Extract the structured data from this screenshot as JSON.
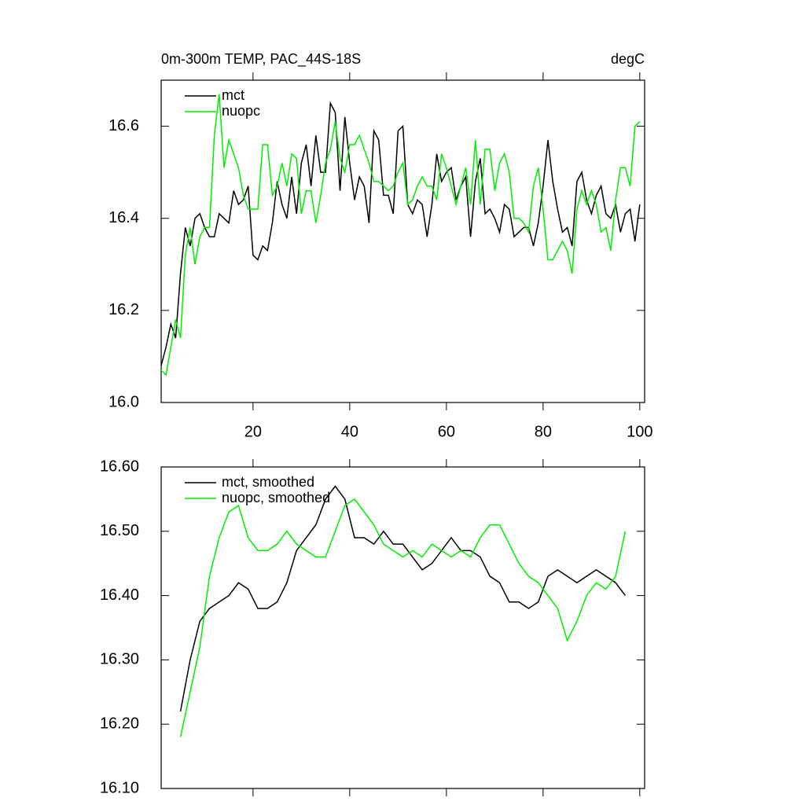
{
  "chart_data": [
    {
      "type": "line",
      "title": "0m-300m TEMP, PAC_44S-18S",
      "units": "degC",
      "legend": "top-left",
      "show_xtick_labels": true,
      "x": [
        1,
        2,
        3,
        4,
        5,
        6,
        7,
        8,
        9,
        10,
        11,
        12,
        13,
        14,
        15,
        16,
        17,
        18,
        19,
        20,
        21,
        22,
        23,
        24,
        25,
        26,
        27,
        28,
        29,
        30,
        31,
        32,
        33,
        34,
        35,
        36,
        37,
        38,
        39,
        40,
        41,
        42,
        43,
        44,
        45,
        46,
        47,
        48,
        49,
        50,
        51,
        52,
        53,
        54,
        55,
        56,
        57,
        58,
        59,
        60,
        61,
        62,
        63,
        64,
        65,
        66,
        67,
        68,
        69,
        70,
        71,
        72,
        73,
        74,
        75,
        76,
        77,
        78,
        79,
        80,
        81,
        82,
        83,
        84,
        85,
        86,
        87,
        88,
        89,
        90,
        91,
        92,
        93,
        94,
        95,
        96,
        97,
        98,
        99,
        100
      ],
      "series": [
        {
          "name": "mct",
          "color": "#000000",
          "values": [
            16.08,
            16.12,
            16.17,
            16.14,
            16.28,
            16.38,
            16.34,
            16.4,
            16.41,
            16.38,
            16.36,
            16.36,
            16.41,
            16.4,
            16.39,
            16.46,
            16.43,
            16.44,
            16.47,
            16.32,
            16.31,
            16.34,
            16.33,
            16.39,
            16.48,
            16.43,
            16.4,
            16.49,
            16.41,
            16.52,
            16.56,
            16.47,
            16.58,
            16.5,
            16.5,
            16.65,
            16.63,
            16.46,
            16.62,
            16.52,
            16.44,
            16.49,
            16.47,
            16.39,
            16.59,
            16.57,
            16.45,
            16.45,
            16.41,
            16.59,
            16.6,
            16.43,
            16.41,
            16.44,
            16.43,
            16.36,
            16.43,
            16.54,
            16.48,
            16.5,
            16.51,
            16.44,
            16.47,
            16.49,
            16.36,
            16.48,
            16.53,
            16.41,
            16.42,
            16.4,
            16.37,
            16.43,
            16.42,
            16.36,
            16.37,
            16.38,
            16.38,
            16.34,
            16.39,
            16.47,
            16.57,
            16.48,
            16.42,
            16.37,
            16.38,
            16.34,
            16.48,
            16.5,
            16.44,
            16.41,
            16.45,
            16.47,
            16.41,
            16.4,
            16.43,
            16.37,
            16.41,
            16.42,
            16.35,
            16.43
          ]
        },
        {
          "name": "nuopc",
          "color": "#00ee00",
          "values": [
            16.07,
            16.06,
            16.12,
            16.18,
            16.14,
            16.32,
            16.38,
            16.3,
            16.36,
            16.38,
            16.38,
            16.58,
            16.67,
            16.51,
            16.57,
            16.54,
            16.51,
            16.45,
            16.42,
            16.42,
            16.42,
            16.56,
            16.56,
            16.45,
            16.47,
            16.52,
            16.47,
            16.54,
            16.53,
            16.41,
            16.46,
            16.46,
            16.39,
            16.45,
            16.52,
            16.55,
            16.61,
            16.53,
            16.5,
            16.56,
            16.56,
            16.58,
            16.55,
            16.52,
            16.48,
            16.48,
            16.47,
            16.46,
            16.47,
            16.5,
            16.52,
            16.43,
            16.44,
            16.47,
            16.49,
            16.47,
            16.47,
            16.44,
            16.54,
            16.51,
            16.47,
            16.43,
            16.47,
            16.51,
            16.43,
            16.57,
            16.43,
            16.55,
            16.55,
            16.46,
            16.52,
            16.54,
            16.5,
            16.4,
            16.4,
            16.39,
            16.37,
            16.47,
            16.51,
            16.42,
            16.31,
            16.31,
            16.33,
            16.35,
            16.33,
            16.28,
            16.42,
            16.46,
            16.43,
            16.46,
            16.43,
            16.37,
            16.38,
            16.33,
            16.44,
            16.51,
            16.51,
            16.47,
            16.6,
            16.61
          ]
        }
      ],
      "xlim": [
        1,
        101
      ],
      "xticks": [
        20,
        40,
        60,
        80,
        100
      ],
      "ylim": [
        16.0,
        16.7
      ],
      "yticks": [
        {
          "value": 16,
          "label": "16.0"
        },
        16.2,
        16.4,
        16.6
      ]
    },
    {
      "type": "line",
      "legend": "top-left",
      "show_xtick_labels": false,
      "x": [
        5,
        7,
        9,
        11,
        13,
        15,
        17,
        19,
        21,
        23,
        25,
        27,
        29,
        31,
        33,
        35,
        37,
        39,
        41,
        43,
        45,
        47,
        49,
        51,
        53,
        55,
        57,
        59,
        61,
        63,
        65,
        67,
        69,
        71,
        73,
        75,
        77,
        79,
        81,
        83,
        85,
        87,
        89,
        91,
        93,
        95,
        97
      ],
      "series": [
        {
          "name": "mct, smoothed",
          "color": "#000000",
          "values": [
            16.22,
            16.3,
            16.36,
            16.38,
            16.39,
            16.4,
            16.42,
            16.41,
            16.38,
            16.38,
            16.39,
            16.42,
            16.47,
            16.49,
            16.51,
            16.55,
            16.57,
            16.55,
            16.49,
            16.49,
            16.48,
            16.5,
            16.48,
            16.48,
            16.46,
            16.44,
            16.45,
            16.47,
            16.49,
            16.47,
            16.47,
            16.46,
            16.43,
            16.42,
            16.39,
            16.39,
            16.38,
            16.39,
            16.43,
            16.44,
            16.43,
            16.42,
            16.43,
            16.44,
            16.43,
            16.42,
            16.4
          ]
        },
        {
          "name": "nuopc, smoothed",
          "color": "#00ee00",
          "values": [
            16.18,
            16.25,
            16.32,
            16.43,
            16.49,
            16.53,
            16.54,
            16.49,
            16.47,
            16.47,
            16.48,
            16.5,
            16.48,
            16.47,
            16.46,
            16.46,
            16.5,
            16.54,
            16.55,
            16.53,
            16.51,
            16.48,
            16.47,
            16.46,
            16.47,
            16.46,
            16.48,
            16.47,
            16.46,
            16.47,
            16.46,
            16.49,
            16.51,
            16.51,
            16.48,
            16.45,
            16.43,
            16.42,
            16.4,
            16.38,
            16.33,
            16.36,
            16.4,
            16.42,
            16.41,
            16.43,
            16.5
          ]
        }
      ],
      "xlim": [
        1,
        101
      ],
      "xticks": [
        20,
        40,
        60,
        80,
        100
      ],
      "ylim": [
        16.1,
        16.6
      ],
      "yticks": [
        {
          "value": 16.1,
          "label": "16.10"
        },
        {
          "value": 16.2,
          "label": "16.20"
        },
        {
          "value": 16.3,
          "label": "16.30"
        },
        {
          "value": 16.4,
          "label": "16.40"
        },
        {
          "value": 16.5,
          "label": "16.50"
        },
        {
          "value": 16.6,
          "label": "16.60"
        }
      ]
    }
  ]
}
